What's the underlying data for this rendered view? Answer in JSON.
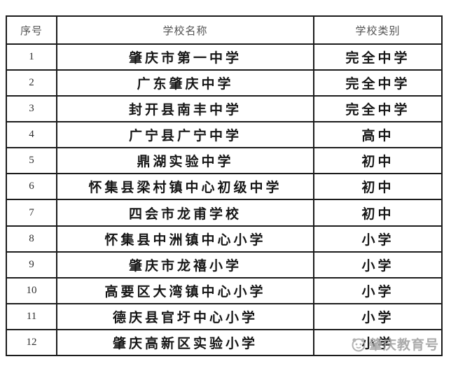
{
  "table": {
    "columns": [
      {
        "key": "num",
        "label": "序号"
      },
      {
        "key": "name",
        "label": "学校名称"
      },
      {
        "key": "category",
        "label": "学校类别"
      }
    ],
    "rows": [
      {
        "num": "1",
        "name": "肇庆市第一中学",
        "category": "完全中学"
      },
      {
        "num": "2",
        "name": "广东肇庆中学",
        "category": "完全中学"
      },
      {
        "num": "3",
        "name": "封开县南丰中学",
        "category": "完全中学"
      },
      {
        "num": "4",
        "name": "广宁县广宁中学",
        "category": "高中"
      },
      {
        "num": "5",
        "name": "鼎湖实验中学",
        "category": "初中"
      },
      {
        "num": "6",
        "name": "怀集县梁村镇中心初级中学",
        "category": "初中"
      },
      {
        "num": "7",
        "name": "四会市龙甫学校",
        "category": "初中"
      },
      {
        "num": "8",
        "name": "怀集县中洲镇中心小学",
        "category": "小学"
      },
      {
        "num": "9",
        "name": "肇庆市龙禧小学",
        "category": "小学"
      },
      {
        "num": "10",
        "name": "高要区大湾镇中心小学",
        "category": "小学"
      },
      {
        "num": "11",
        "name": "德庆县官圩中心小学",
        "category": "小学"
      },
      {
        "num": "12",
        "name": "肇庆高新区实验小学",
        "category": "小学"
      }
    ]
  },
  "watermark": {
    "text": "肇庆教育号",
    "icon": "publisher-logo-icon",
    "color": "#a3a3a3"
  },
  "colors": {
    "border": "#1c1c1c",
    "header_text": "#535353",
    "body_text": "#161616",
    "background": "#ffffff"
  }
}
